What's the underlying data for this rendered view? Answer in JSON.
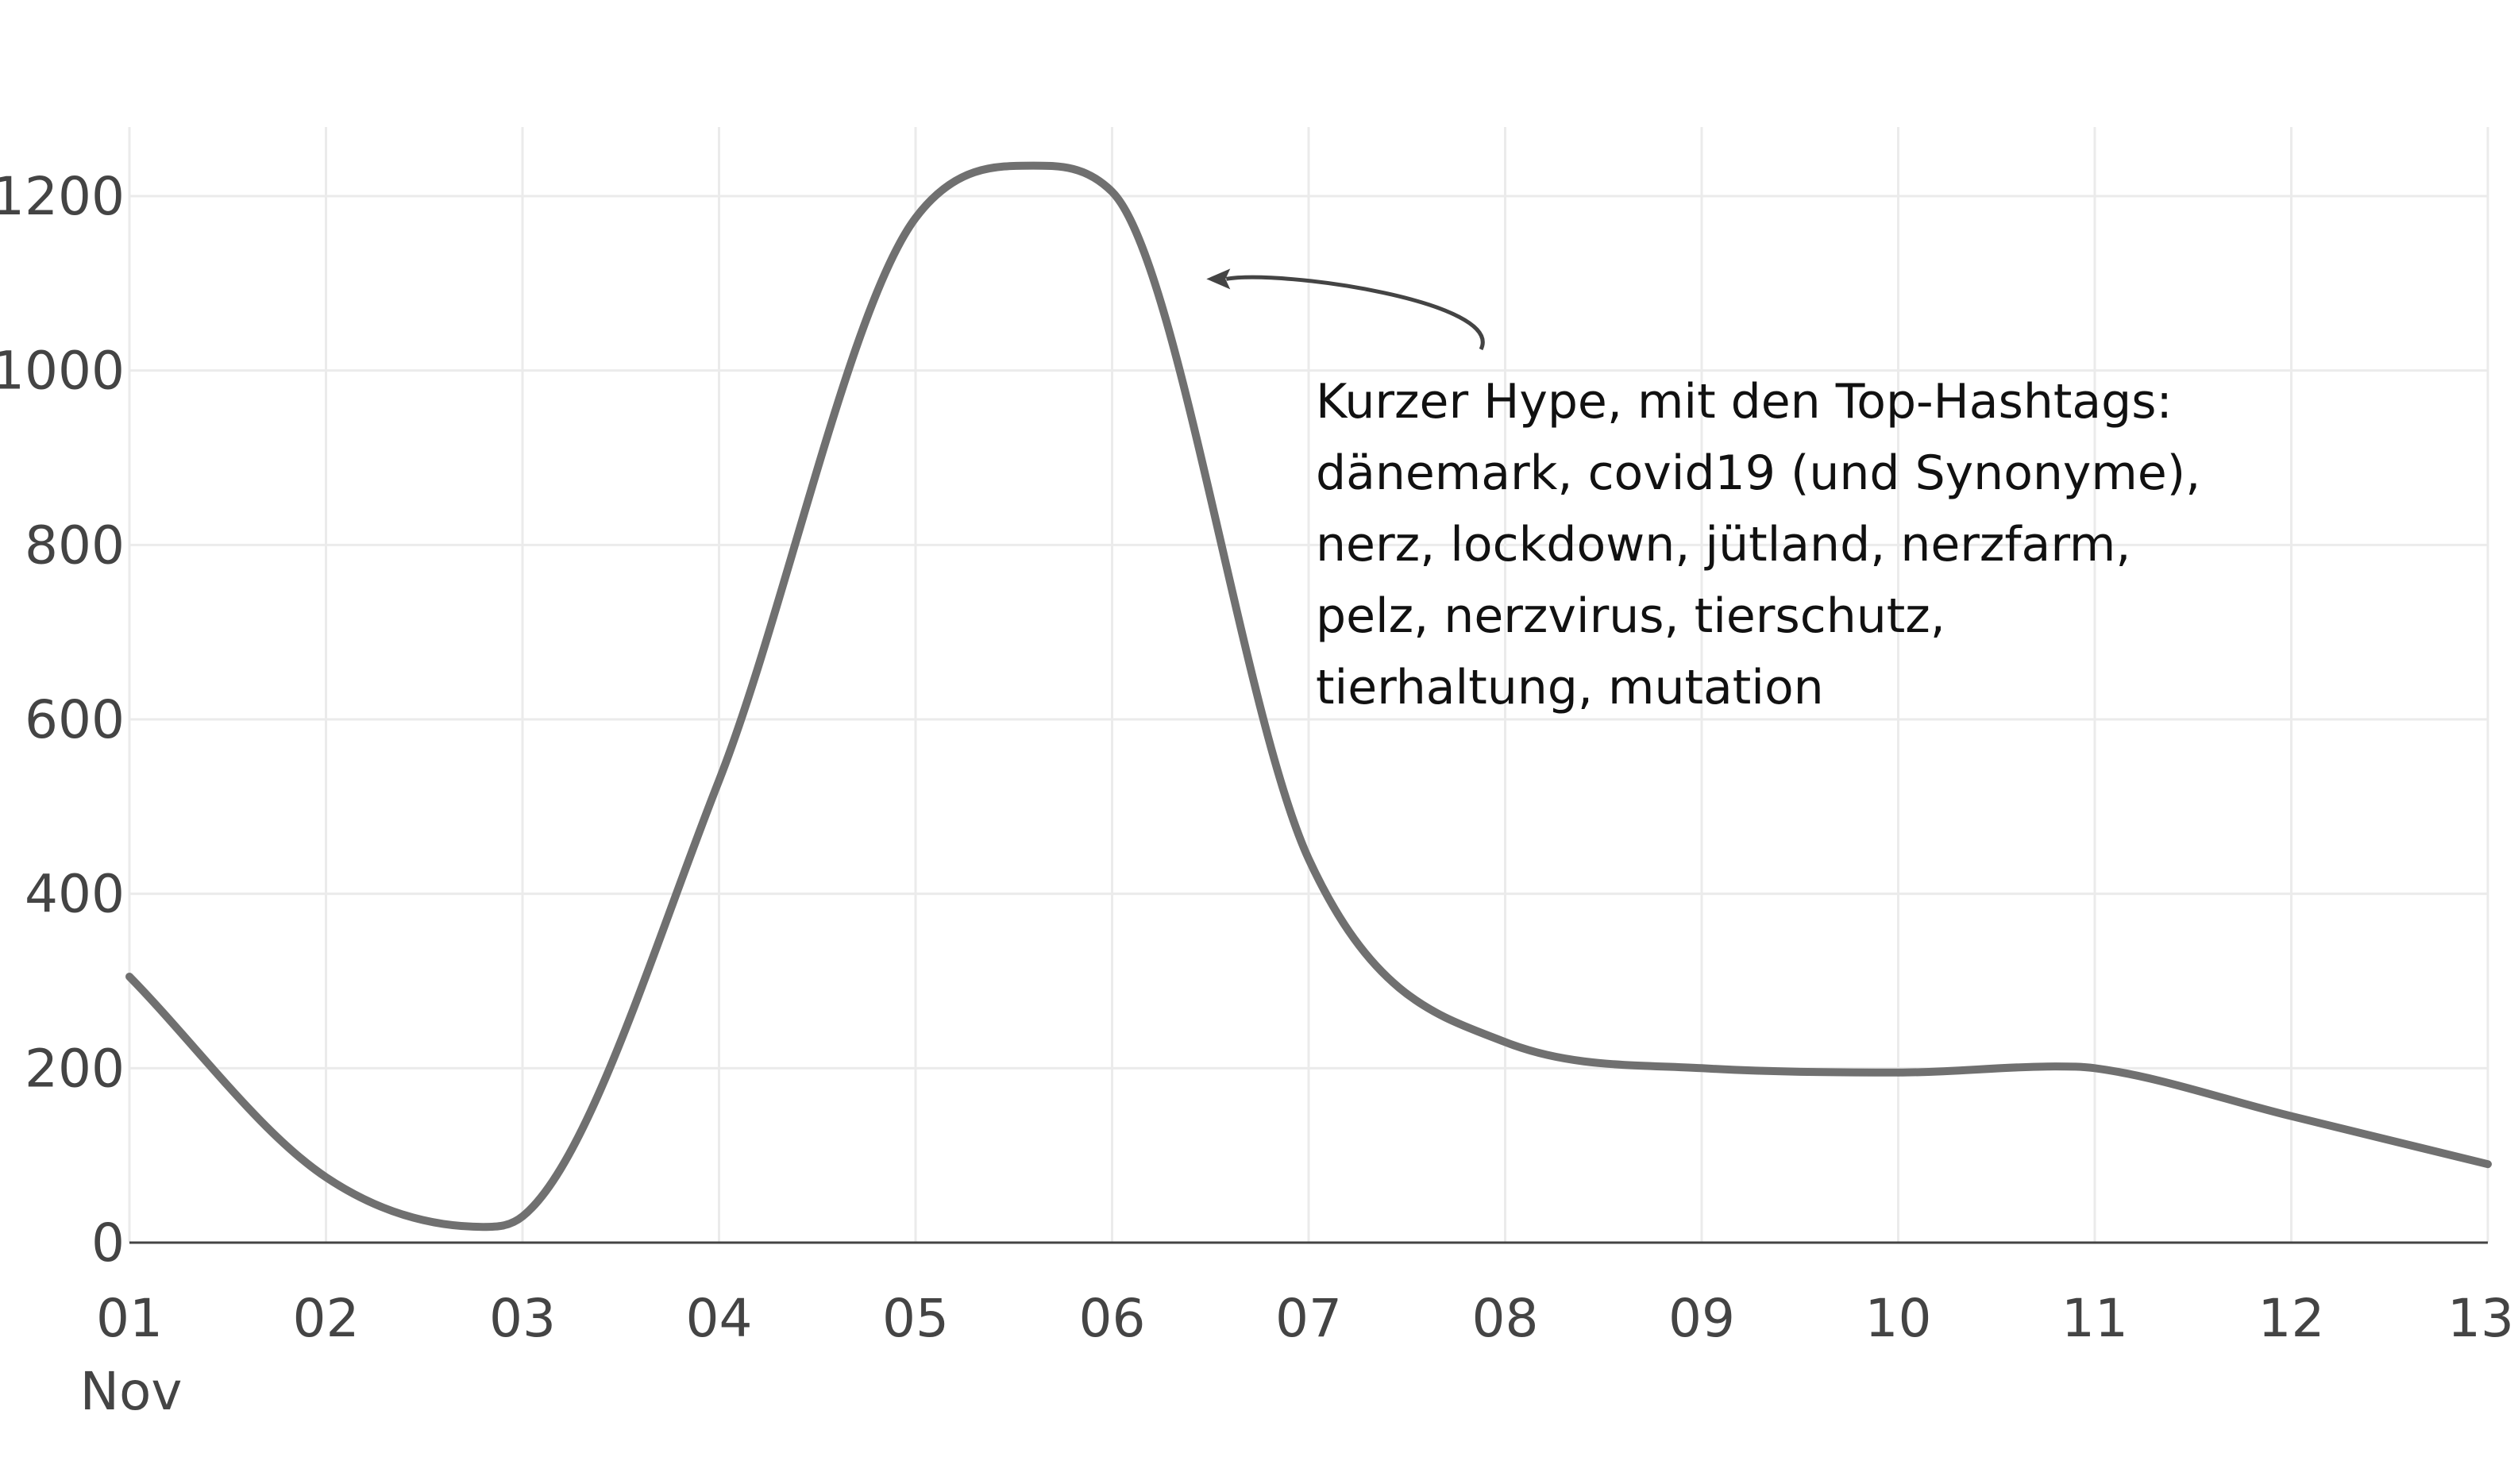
{
  "chart_data": {
    "type": "line",
    "title": "",
    "xlabel": "",
    "ylabel": "",
    "x_ticks": [
      "01",
      "02",
      "03",
      "04",
      "05",
      "06",
      "07",
      "08",
      "09",
      "10",
      "11",
      "12",
      "13"
    ],
    "x_month_label": "Nov",
    "x_range": [
      1,
      13
    ],
    "ylim": [
      0,
      1300
    ],
    "y_ticks": [
      0,
      200,
      400,
      600,
      800,
      1000,
      1200
    ],
    "grid": true,
    "series": [
      {
        "x": [
          1,
          2,
          2.8,
          3,
          4,
          5,
          5.6,
          6,
          7,
          8,
          9,
          10,
          10.8,
          11,
          12,
          13
        ],
        "values": [
          305,
          75,
          18,
          30,
          530,
          1175,
          1235,
          1205,
          440,
          230,
          200,
          195,
          202,
          200,
          145,
          90
        ],
        "color": "#707070"
      }
    ],
    "annotation": {
      "lines": [
        "Kurzer Hype, mit den Top-Hashtags:",
        "dänemark, covid19 (und Synonyme),",
        "nerz, lockdown, jütland, nerzfarm,",
        "pelz, nerzvirus, tierschutz,",
        "tierhaltung, mutation"
      ],
      "arrow_target": {
        "x": 6.48,
        "y": 1105
      }
    }
  }
}
